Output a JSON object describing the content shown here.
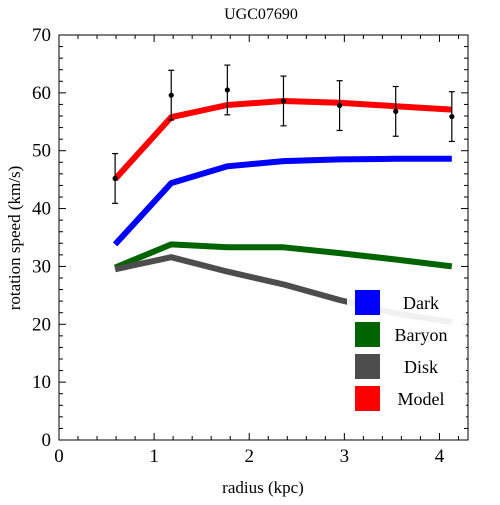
{
  "chart_data": {
    "type": "line",
    "title": "UGC07690",
    "xlabel": "radius (kpc)",
    "ylabel": "rotation speed (km/s)",
    "xlim": [
      0,
      4.3
    ],
    "ylim": [
      0,
      70
    ],
    "xticks": [
      0,
      1,
      2,
      3,
      4
    ],
    "yticks": [
      0,
      10,
      20,
      30,
      40,
      50,
      60,
      70
    ],
    "legend_position": "bottom-right",
    "x": [
      0.59,
      1.18,
      1.77,
      2.36,
      2.95,
      3.54,
      4.13
    ],
    "series": [
      {
        "name": "Dark",
        "color": "#0000ff",
        "values": [
          33.8,
          44.4,
          47.3,
          48.2,
          48.5,
          48.6,
          48.6
        ]
      },
      {
        "name": "Baryon",
        "color": "#006400",
        "values": [
          29.8,
          33.8,
          33.3,
          33.3,
          32.3,
          31.2,
          30.0
        ]
      },
      {
        "name": "Disk",
        "color": "#4d4d4d",
        "values": [
          29.5,
          31.6,
          29.1,
          26.9,
          24.2,
          21.9,
          20.4
        ]
      },
      {
        "name": "Model",
        "color": "#ff0000",
        "values": [
          45.1,
          55.8,
          57.9,
          58.6,
          58.3,
          57.7,
          57.1
        ]
      }
    ],
    "observed": {
      "x": [
        0.59,
        1.18,
        1.77,
        2.36,
        2.95,
        3.54,
        4.13
      ],
      "y": [
        45.2,
        59.6,
        60.5,
        58.6,
        57.8,
        56.8,
        55.9
      ],
      "error": [
        4.3,
        4.3,
        4.3,
        4.3,
        4.3,
        4.3,
        4.3
      ]
    }
  }
}
